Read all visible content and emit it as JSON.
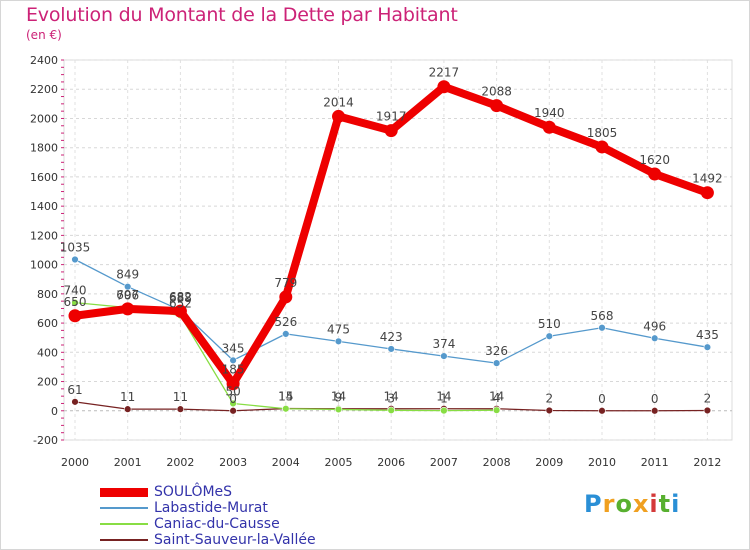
{
  "chart_data": {
    "type": "line",
    "title": "Evolution du Montant de la Dette par Habitant",
    "unit_label": "(en €)",
    "x": [
      "2000",
      "2001",
      "2002",
      "2003",
      "2004",
      "2005",
      "2006",
      "2007",
      "2008",
      "2009",
      "2010",
      "2011",
      "2012"
    ],
    "ylim": [
      -200,
      2400
    ],
    "yticks": [
      "-200",
      "0",
      "200",
      "400",
      "600",
      "800",
      "1000",
      "1200",
      "1400",
      "1600",
      "1800",
      "2000",
      "2200",
      "2400"
    ],
    "series": [
      {
        "name": "SOULÔMeS",
        "color": "#ee0000",
        "values": [
          650,
          697,
          682,
          185,
          779,
          2014,
          1917,
          2217,
          2088,
          1940,
          1805,
          1620,
          1492
        ],
        "labels": [
          "650",
          "697",
          "682",
          "185",
          "779",
          "2014",
          "1917",
          "2217",
          "2088",
          "1940",
          "1805",
          "1620",
          "1492"
        ]
      },
      {
        "name": "Labastide-Murat",
        "color": "#5599cc",
        "values": [
          1035,
          849,
          688,
          345,
          526,
          475,
          423,
          374,
          326,
          510,
          568,
          496,
          435
        ],
        "labels": [
          "1035",
          "849",
          "688",
          "345",
          "526",
          "475",
          "423",
          "374",
          "326",
          "510",
          "568",
          "496",
          "435"
        ]
      },
      {
        "name": "Caniac-du-Causse",
        "color": "#88dd44",
        "values": [
          740,
          706,
          652,
          50,
          14,
          9,
          3,
          1,
          4,
          null,
          null,
          null,
          null
        ],
        "labels": [
          "740",
          "706",
          "652",
          "50",
          "14",
          "9",
          "3",
          "1",
          "4",
          "",
          "",
          "",
          ""
        ]
      },
      {
        "name": "Saint-Sauveur-la-Vallée",
        "color": "#772222",
        "values": [
          61,
          11,
          11,
          0,
          15,
          14,
          14,
          14,
          14,
          2,
          0,
          0,
          2
        ],
        "labels": [
          "61",
          "11",
          "11",
          "0",
          "15",
          "14",
          "14",
          "14",
          "14",
          "2",
          "0",
          "0",
          "2"
        ]
      }
    ]
  },
  "legend": {
    "items": [
      {
        "label": "SOULÔMeS",
        "color": "#ee0000"
      },
      {
        "label": "Labastide-Murat",
        "color": "#5599cc"
      },
      {
        "label": "Caniac-du-Causse",
        "color": "#88dd44"
      },
      {
        "label": "Saint-Sauveur-la-Vallée",
        "color": "#772222"
      }
    ]
  },
  "logo": {
    "letters": [
      "P",
      "r",
      "o",
      "x",
      "i",
      "t",
      "i"
    ],
    "colors": [
      "#2a8fd6",
      "#f0a020",
      "#58b030",
      "#f0a020",
      "#d43a3a",
      "#58b030",
      "#2a8fd6"
    ]
  }
}
